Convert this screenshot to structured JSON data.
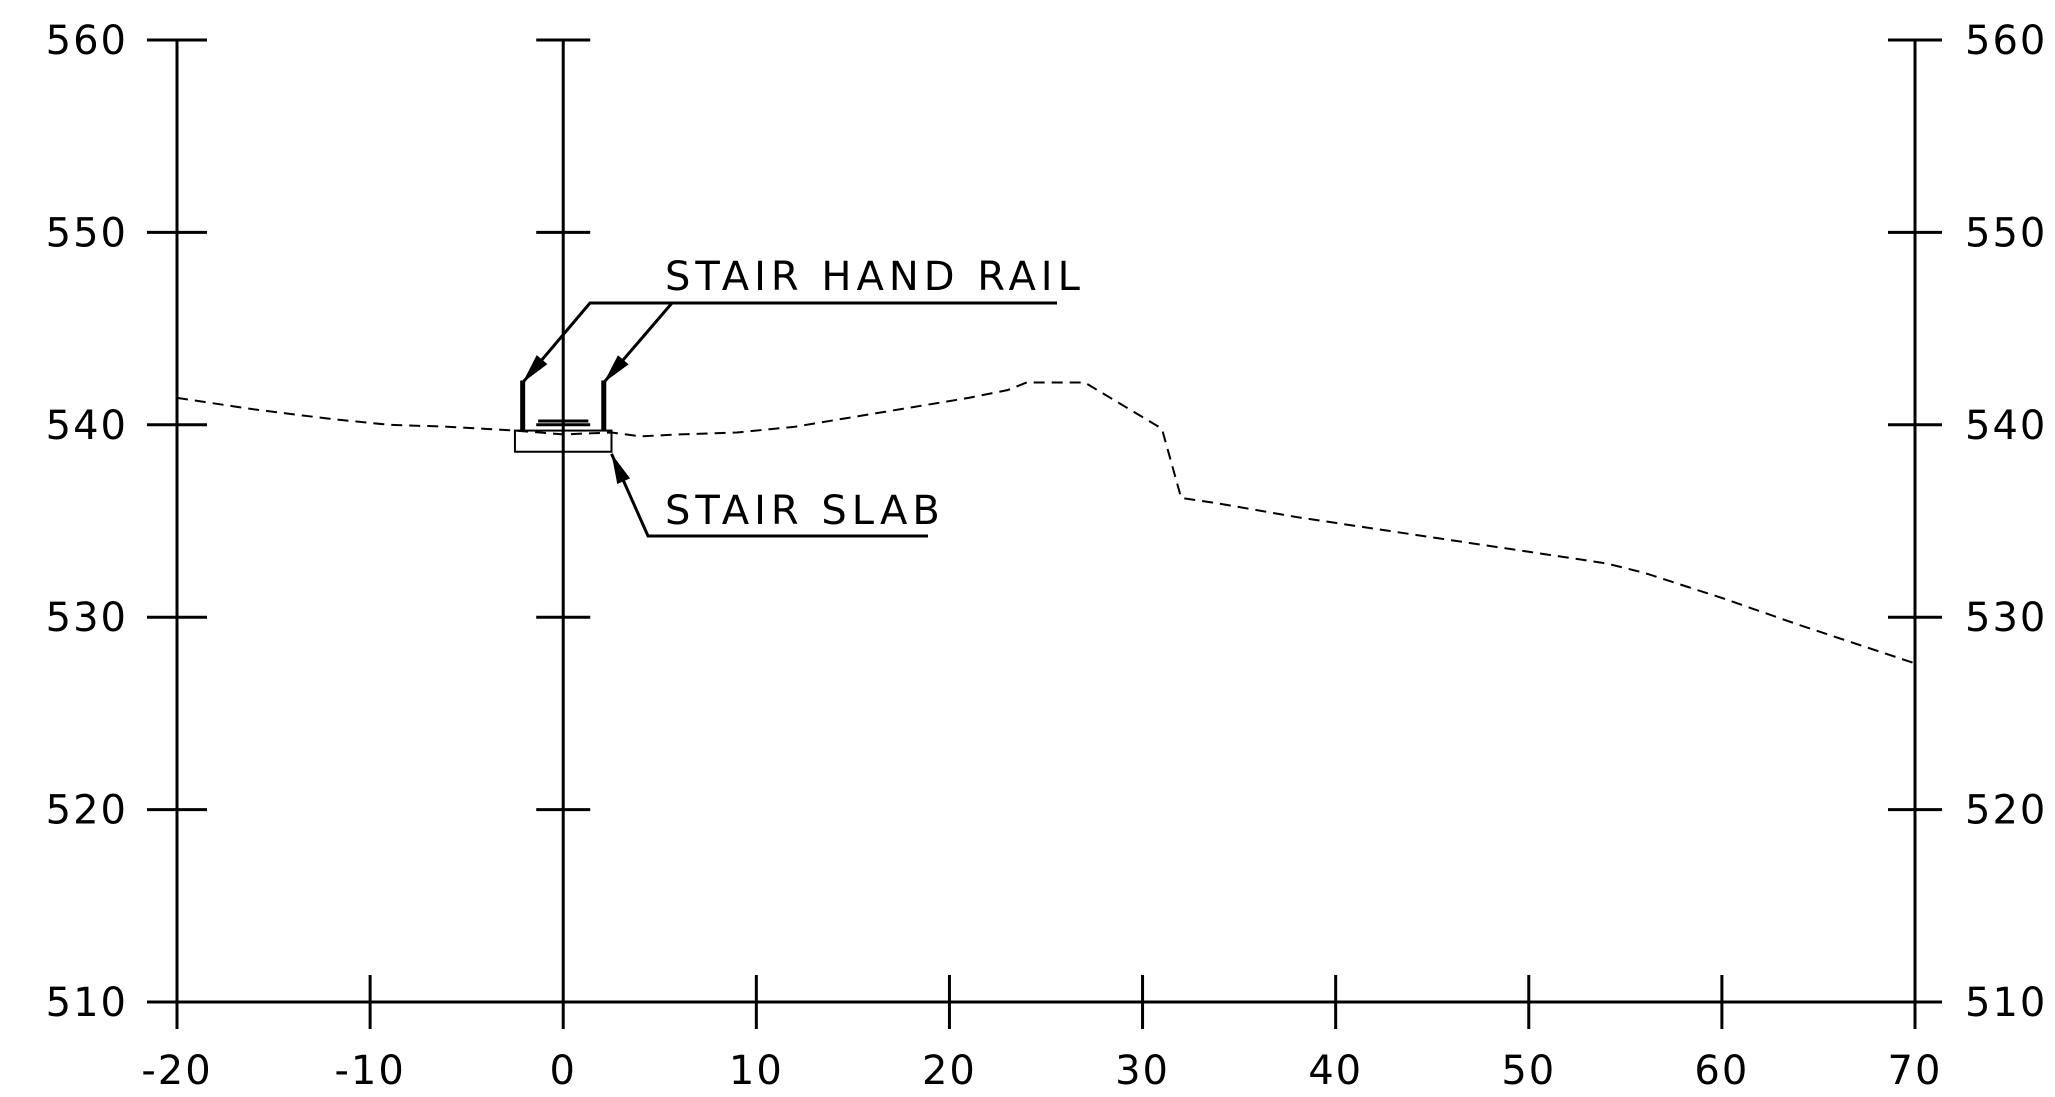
{
  "chart_data": {
    "type": "line",
    "title": "",
    "xlabel": "",
    "ylabel": "",
    "xlim": [
      -20,
      70
    ],
    "ylim": [
      510,
      560
    ],
    "x_ticks": [
      "-20",
      "-10",
      "0",
      "10",
      "20",
      "30",
      "40",
      "50",
      "60",
      "70"
    ],
    "y_ticks": [
      "510",
      "520",
      "530",
      "540",
      "550",
      "560"
    ],
    "grid": false,
    "series": [
      {
        "name": "",
        "style": "dashed",
        "points": [
          [
            -20,
            541.4
          ],
          [
            -16,
            540.8
          ],
          [
            -12,
            540.3
          ],
          [
            -9,
            540.0
          ],
          [
            -6,
            539.9
          ],
          [
            -2.5,
            539.7
          ],
          [
            0,
            539.5
          ],
          [
            2.5,
            539.6
          ],
          [
            4,
            539.4
          ],
          [
            6,
            539.5
          ],
          [
            9,
            539.6
          ],
          [
            12,
            539.9
          ],
          [
            15,
            540.4
          ],
          [
            18,
            540.9
          ],
          [
            21,
            541.4
          ],
          [
            23,
            541.8
          ],
          [
            24,
            542.2
          ],
          [
            27,
            542.2
          ],
          [
            29,
            541.0
          ],
          [
            31,
            539.8
          ],
          [
            32,
            536.2
          ],
          [
            34,
            535.9
          ],
          [
            38,
            535.2
          ],
          [
            42,
            534.6
          ],
          [
            46,
            534.0
          ],
          [
            50,
            533.4
          ],
          [
            54,
            532.8
          ],
          [
            56,
            532.3
          ],
          [
            60,
            531.0
          ],
          [
            64,
            529.6
          ],
          [
            67,
            528.6
          ],
          [
            70,
            527.6
          ]
        ]
      }
    ],
    "features": {
      "stair_slab": {
        "x": [
          -2.5,
          2.5
        ],
        "top": 539.7,
        "bottom": 538.6
      },
      "hand_rails": {
        "x": [
          -2.1,
          2.1
        ],
        "bottom": 539.7,
        "top": 542.3
      },
      "cap_line": {
        "x": [
          -1.3,
          1.3
        ],
        "y": 540.2
      }
    },
    "annotations": [
      {
        "text": "STAIR HAND RAIL",
        "targets": [
          [
            -2.1,
            542.3
          ],
          [
            2.1,
            542.3
          ]
        ]
      },
      {
        "text": "STAIR SLAB",
        "targets": [
          [
            2.5,
            538.6
          ]
        ]
      }
    ],
    "colors": {
      "line": "#000000",
      "background": "#ffffff"
    }
  }
}
